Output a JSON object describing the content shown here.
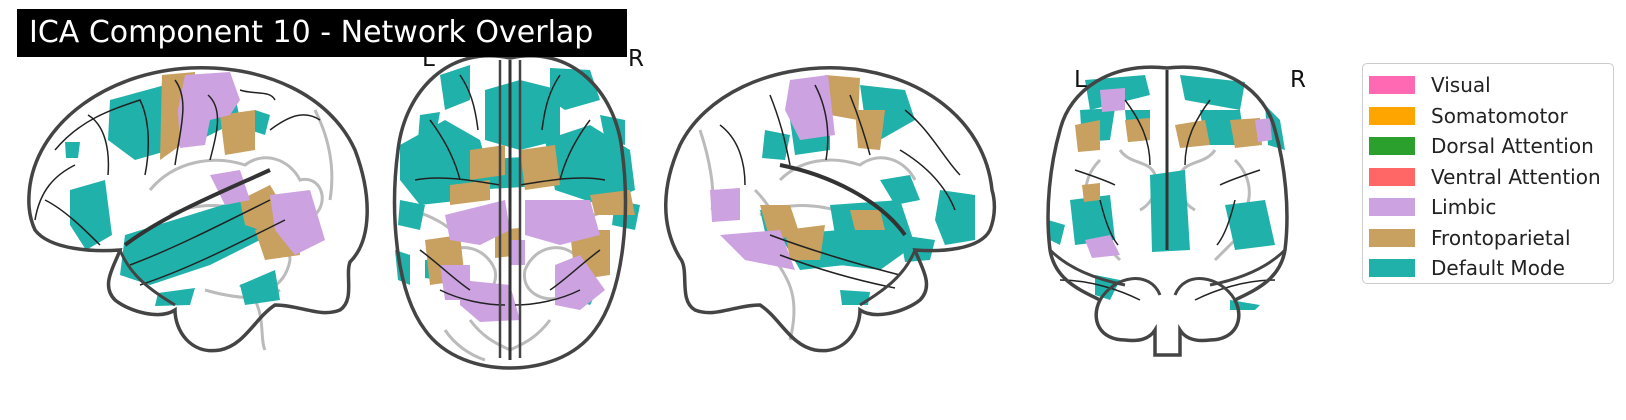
{
  "title": "ICA Component 10 - Network Overlap",
  "orientation_labels": {
    "axial_left": "L",
    "axial_right": "R",
    "coronal_left": "L",
    "coronal_right": "R"
  },
  "views": [
    "sagittal-left",
    "axial",
    "sagittal-right",
    "coronal"
  ],
  "legend": {
    "items": [
      {
        "label": "Visual",
        "color": "#ff69b4"
      },
      {
        "label": "Somatomotor",
        "color": "#ffa500"
      },
      {
        "label": "Dorsal Attention",
        "color": "#2ca02c"
      },
      {
        "label": "Ventral Attention",
        "color": "#ff6666"
      },
      {
        "label": "Limbic",
        "color": "#cda2e0"
      },
      {
        "label": "Frontoparietal",
        "color": "#c8a060"
      },
      {
        "label": "Default Mode",
        "color": "#20b2aa"
      }
    ]
  },
  "colors": {
    "outline": "#444444",
    "inner_sulci": "#222222",
    "gray_gyri": "#bbbbbb"
  }
}
